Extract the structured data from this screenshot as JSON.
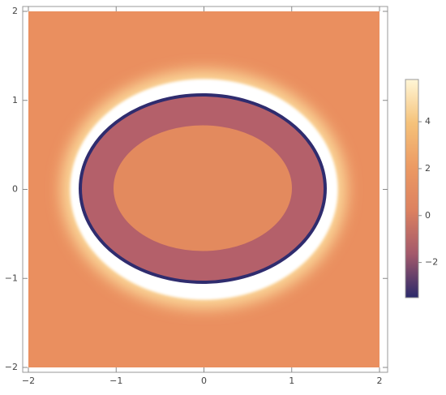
{
  "chart_data": {
    "type": "density",
    "xlim": [
      -2,
      2
    ],
    "ylim": [
      -2,
      2
    ],
    "xticks": [
      {
        "value": -2,
        "label": "−2"
      },
      {
        "value": -1,
        "label": "−1"
      },
      0,
      1,
      2
    ],
    "yticks": [
      {
        "value": -2,
        "label": "−2"
      },
      {
        "value": -1,
        "label": "−1"
      },
      0,
      1,
      2
    ],
    "colorbar": {
      "lim": [
        -3.5,
        5.8
      ],
      "ticks": [
        {
          "value": -2,
          "label": "−2"
        },
        0,
        2,
        4
      ],
      "colors": [
        "#2b2a6b",
        "#a3596b",
        "#dc8160",
        "#ec9a63",
        "#f5c27a",
        "#fff6d6"
      ]
    }
  }
}
